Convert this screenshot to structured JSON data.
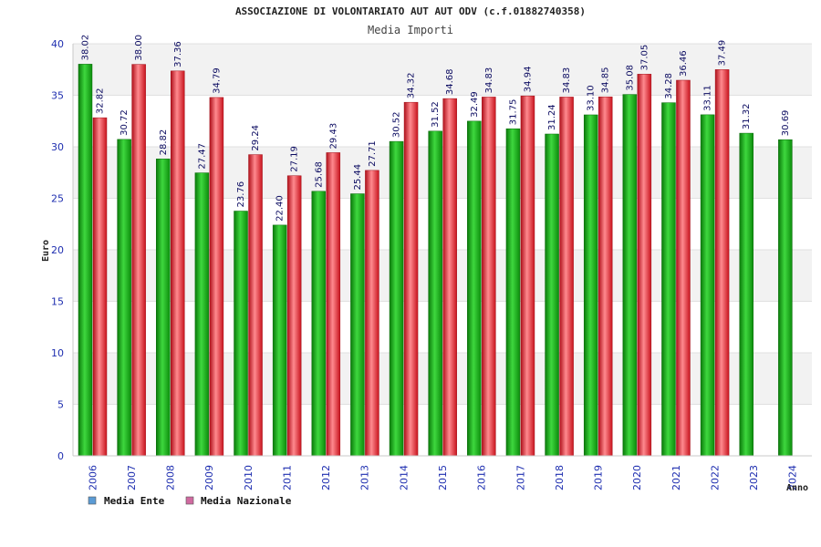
{
  "chart_data": {
    "type": "bar",
    "title": "ASSOCIAZIONE DI VOLONTARIATO AUT AUT ODV (c.f.01882740358)",
    "subtitle": "Media Importi",
    "xlabel": "Anno",
    "ylabel": "Euro",
    "ylim": [
      0,
      40
    ],
    "yticks": [
      "0",
      "5",
      "10",
      "15",
      "20",
      "25",
      "30",
      "35",
      "40"
    ],
    "grid": true,
    "legend_position": "bottom-left",
    "categories": [
      "2006",
      "2007",
      "2008",
      "2009",
      "2010",
      "2011",
      "2012",
      "2013",
      "2014",
      "2015",
      "2016",
      "2017",
      "2018",
      "2019",
      "2020",
      "2021",
      "2022",
      "2023",
      "2024"
    ],
    "series": [
      {
        "name": "Media Ente",
        "legend_color": "#5b9bd5",
        "bar_color": "#18b018",
        "values": [
          38.02,
          30.72,
          28.82,
          27.47,
          23.76,
          22.4,
          25.68,
          25.44,
          30.52,
          31.52,
          32.49,
          31.75,
          31.24,
          33.1,
          35.08,
          34.28,
          33.11,
          31.32,
          30.69
        ],
        "labels": [
          "38.02",
          "30.72",
          "28.82",
          "27.47",
          "23.76",
          "22.40",
          "25.68",
          "25.44",
          "30.52",
          "31.52",
          "32.49",
          "31.75",
          "31.24",
          "33.10",
          "35.08",
          "34.28",
          "33.11",
          "31.32",
          "30.69"
        ]
      },
      {
        "name": "Media Nazionale",
        "legend_color": "#d06aa0",
        "bar_color": "#e8222c",
        "values": [
          32.82,
          38.0,
          37.36,
          34.79,
          29.24,
          27.19,
          29.43,
          27.71,
          34.32,
          34.68,
          34.83,
          34.94,
          34.83,
          34.85,
          37.05,
          36.46,
          37.49,
          null,
          null
        ],
        "labels": [
          "32.82",
          "38.00",
          "37.36",
          "34.79",
          "29.24",
          "27.19",
          "29.43",
          "27.71",
          "34.32",
          "34.68",
          "34.83",
          "34.94",
          "34.83",
          "34.85",
          "37.05",
          "36.46",
          "37.49",
          null,
          null
        ]
      }
    ]
  }
}
